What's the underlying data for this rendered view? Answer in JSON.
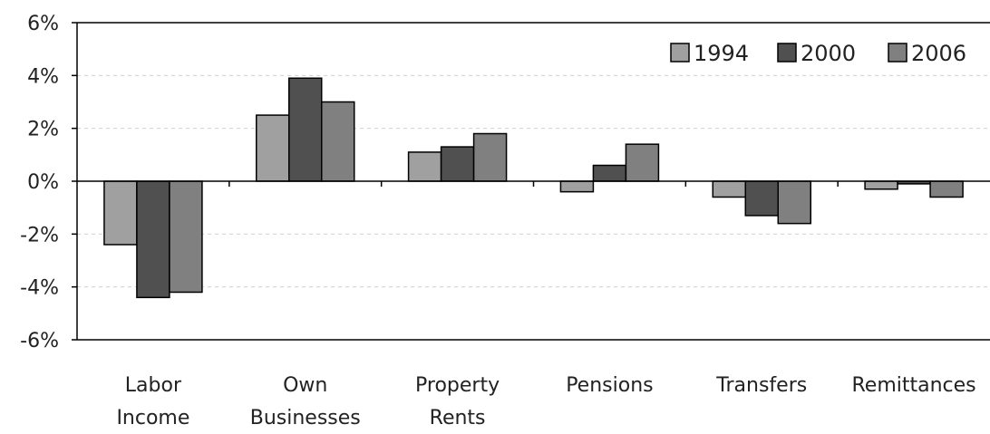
{
  "chart_data": {
    "type": "bar",
    "categories": [
      [
        "Labor",
        "Income"
      ],
      [
        "Own",
        "Businesses"
      ],
      [
        "Property",
        "Rents"
      ],
      [
        "Pensions"
      ],
      [
        "Transfers"
      ],
      [
        "Remittances"
      ]
    ],
    "series": [
      {
        "name": "1994",
        "color": "#a0a0a0",
        "values": [
          -2.4,
          2.5,
          1.1,
          -0.4,
          -0.6,
          -0.3
        ]
      },
      {
        "name": "2000",
        "color": "#505050",
        "values": [
          -4.4,
          3.9,
          1.3,
          0.6,
          -1.3,
          -0.1
        ]
      },
      {
        "name": "2006",
        "color": "#808080",
        "values": [
          -4.2,
          3.0,
          1.8,
          1.4,
          -1.6,
          -0.6
        ]
      }
    ],
    "ylim": [
      -6,
      6
    ],
    "yticks": [
      "-6%",
      "-4%",
      "-2%",
      "0%",
      "2%",
      "4%",
      "6%"
    ],
    "ytick_values": [
      -6,
      -4,
      -2,
      0,
      2,
      4,
      6
    ],
    "grid": true,
    "legend_position": "top-right",
    "title": "",
    "xlabel": "",
    "ylabel": ""
  }
}
